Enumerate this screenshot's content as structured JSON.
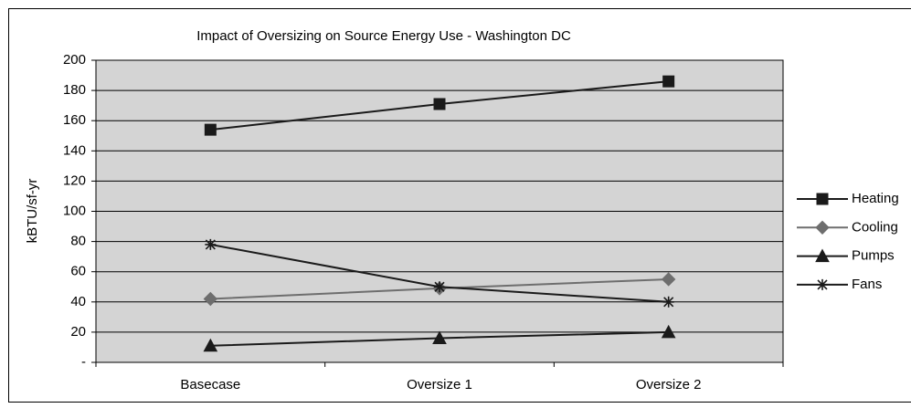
{
  "chart_data": {
    "type": "line",
    "title": "Impact of Oversizing on Source Energy Use - Washington DC",
    "y_label": "kBTU/sf-yr",
    "categories": [
      "Basecase",
      "Oversize 1",
      "Oversize 2"
    ],
    "series": [
      {
        "name": "Heating",
        "color": "#1a1a1a",
        "marker": "square",
        "values": [
          154,
          171,
          186
        ]
      },
      {
        "name": "Cooling",
        "color": "#6e6e6e",
        "marker": "diamond",
        "values": [
          42,
          49,
          55
        ]
      },
      {
        "name": "Pumps",
        "color": "#1a1a1a",
        "marker": "triangle",
        "values": [
          11,
          16,
          20
        ]
      },
      {
        "name": "Fans",
        "color": "#1a1a1a",
        "marker": "star",
        "values": [
          78,
          50,
          40
        ]
      }
    ],
    "ylim": [
      0,
      200
    ],
    "yticks": [
      {
        "value": 0,
        "label": "-"
      },
      20,
      40,
      60,
      80,
      100,
      120,
      140,
      160,
      180,
      200
    ],
    "grid": true,
    "legend": "right"
  }
}
